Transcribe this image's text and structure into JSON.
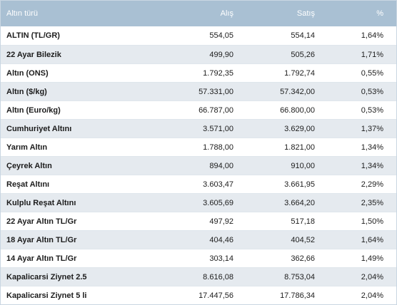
{
  "table": {
    "headers": {
      "name": "Altın türü",
      "buy": "Alış",
      "sell": "Satış",
      "pct": "%"
    },
    "rows": [
      {
        "name": "ALTIN (TL/GR)",
        "buy": "554,05",
        "sell": "554,14",
        "pct": "1,64%"
      },
      {
        "name": "22 Ayar Bilezik",
        "buy": "499,90",
        "sell": "505,26",
        "pct": "1,71%"
      },
      {
        "name": "Altın (ONS)",
        "buy": "1.792,35",
        "sell": "1.792,74",
        "pct": "0,55%"
      },
      {
        "name": "Altın ($/kg)",
        "buy": "57.331,00",
        "sell": "57.342,00",
        "pct": "0,53%"
      },
      {
        "name": "Altın (Euro/kg)",
        "buy": "66.787,00",
        "sell": "66.800,00",
        "pct": "0,53%"
      },
      {
        "name": "Cumhuriyet Altını",
        "buy": "3.571,00",
        "sell": "3.629,00",
        "pct": "1,37%"
      },
      {
        "name": "Yarım Altın",
        "buy": "1.788,00",
        "sell": "1.821,00",
        "pct": "1,34%"
      },
      {
        "name": "Çeyrek Altın",
        "buy": "894,00",
        "sell": "910,00",
        "pct": "1,34%"
      },
      {
        "name": "Reşat Altını",
        "buy": "3.603,47",
        "sell": "3.661,95",
        "pct": "2,29%"
      },
      {
        "name": "Kulplu Reşat Altını",
        "buy": "3.605,69",
        "sell": "3.664,20",
        "pct": "2,35%"
      },
      {
        "name": "22 Ayar Altın TL/Gr",
        "buy": "497,92",
        "sell": "517,18",
        "pct": "1,50%"
      },
      {
        "name": "18 Ayar Altın TL/Gr",
        "buy": "404,46",
        "sell": "404,52",
        "pct": "1,64%"
      },
      {
        "name": "14 Ayar Altın TL/Gr",
        "buy": "303,14",
        "sell": "362,66",
        "pct": "1,49%"
      },
      {
        "name": "Kapalicarsi Ziynet 2.5",
        "buy": "8.616,08",
        "sell": "8.753,04",
        "pct": "2,04%"
      },
      {
        "name": "Kapalicarsi Ziynet 5 li",
        "buy": "17.447,56",
        "sell": "17.786,34",
        "pct": "2,04%"
      }
    ]
  }
}
